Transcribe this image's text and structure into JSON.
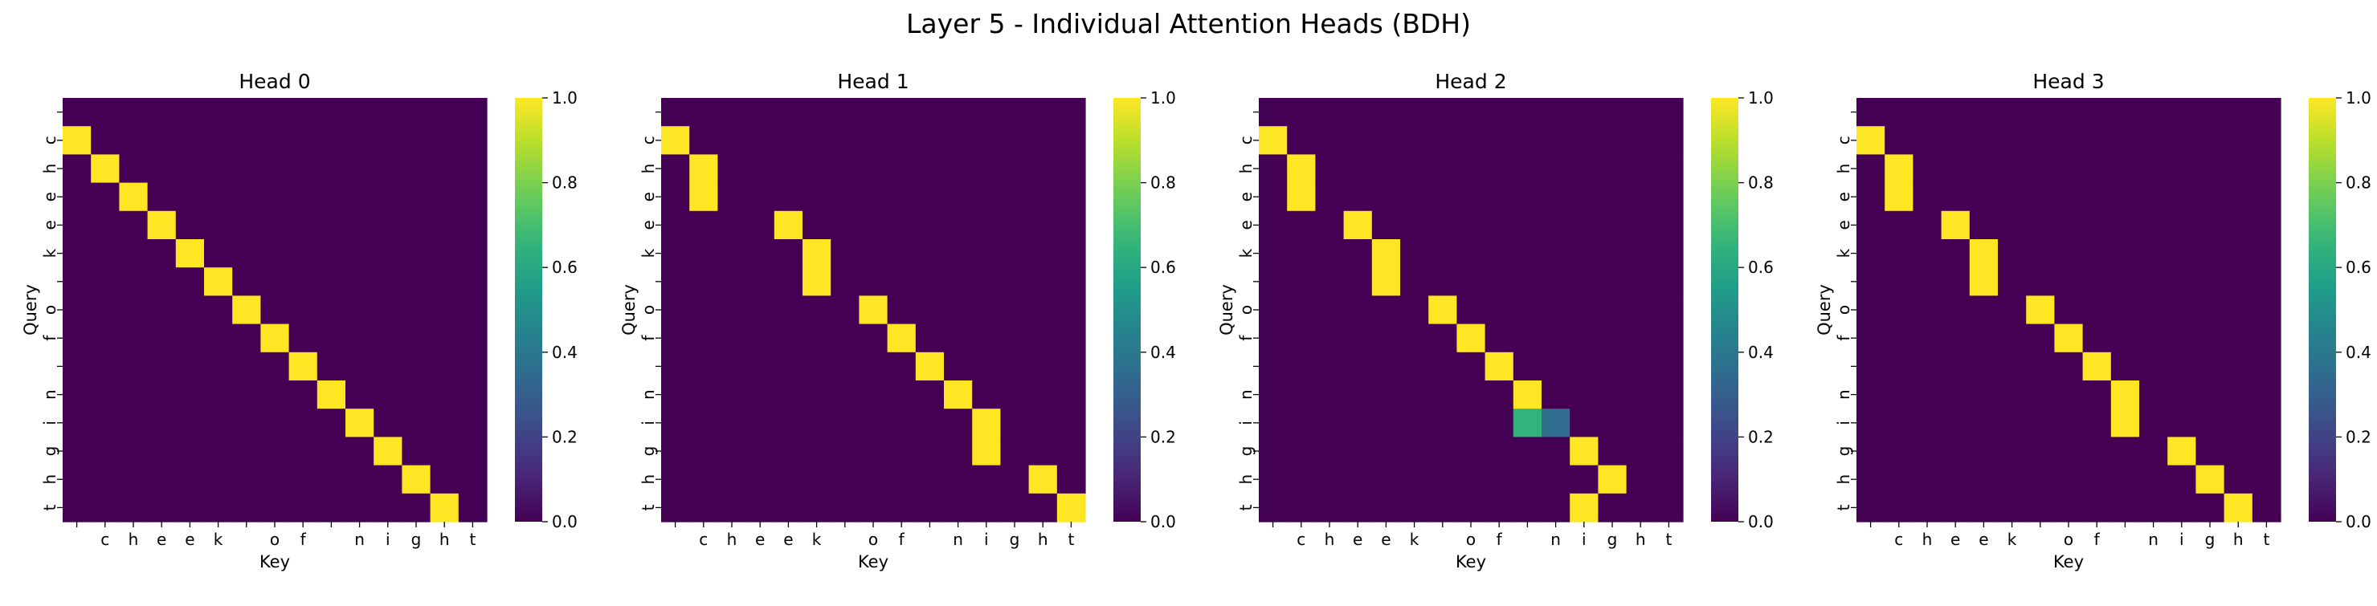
{
  "title": "Layer 5 - Individual Attention Heads (BDH)",
  "colors": {
    "colormap": "viridis",
    "low": "#440154",
    "high": "#fde725"
  },
  "chart_data": [
    {
      "type": "heatmap",
      "title": "Head 0",
      "xlabel": "Key",
      "ylabel": "Query",
      "x_tick_labels": [
        " ",
        "c",
        "h",
        "e",
        "e",
        "k",
        " ",
        "o",
        "f",
        " ",
        "n",
        "i",
        "g",
        "h",
        "t"
      ],
      "y_tick_labels": [
        " ",
        "c",
        "h",
        "e",
        "e",
        "k",
        " ",
        "o",
        "f",
        " ",
        "n",
        "i",
        "g",
        "h",
        "t"
      ],
      "colorbar": {
        "min": 0.0,
        "max": 1.0,
        "ticks": [
          "0.0",
          "0.2",
          "0.4",
          "0.6",
          "0.8",
          "1.0"
        ]
      },
      "values": [
        [
          0,
          0,
          0,
          0,
          0,
          0,
          0,
          0,
          0,
          0,
          0,
          0,
          0,
          0,
          0
        ],
        [
          1,
          0,
          0,
          0,
          0,
          0,
          0,
          0,
          0,
          0,
          0,
          0,
          0,
          0,
          0
        ],
        [
          0,
          1,
          0,
          0,
          0,
          0,
          0,
          0,
          0,
          0,
          0,
          0,
          0,
          0,
          0
        ],
        [
          0,
          0,
          1,
          0,
          0,
          0,
          0,
          0,
          0,
          0,
          0,
          0,
          0,
          0,
          0
        ],
        [
          0,
          0,
          0,
          1,
          0,
          0,
          0,
          0,
          0,
          0,
          0,
          0,
          0,
          0,
          0
        ],
        [
          0,
          0,
          0,
          0,
          1,
          0,
          0,
          0,
          0,
          0,
          0,
          0,
          0,
          0,
          0
        ],
        [
          0,
          0,
          0,
          0,
          0,
          1,
          0,
          0,
          0,
          0,
          0,
          0,
          0,
          0,
          0
        ],
        [
          0,
          0,
          0,
          0,
          0,
          0,
          1,
          0,
          0,
          0,
          0,
          0,
          0,
          0,
          0
        ],
        [
          0,
          0,
          0,
          0,
          0,
          0,
          0,
          1,
          0,
          0,
          0,
          0,
          0,
          0,
          0
        ],
        [
          0,
          0,
          0,
          0,
          0,
          0,
          0,
          0,
          1,
          0,
          0,
          0,
          0,
          0,
          0
        ],
        [
          0,
          0,
          0,
          0,
          0,
          0,
          0,
          0,
          0,
          1,
          0,
          0,
          0,
          0,
          0
        ],
        [
          0,
          0,
          0,
          0,
          0,
          0,
          0,
          0,
          0,
          0,
          1,
          0,
          0,
          0,
          0
        ],
        [
          0,
          0,
          0,
          0,
          0,
          0,
          0,
          0,
          0,
          0,
          0,
          1,
          0,
          0,
          0
        ],
        [
          0,
          0,
          0,
          0,
          0,
          0,
          0,
          0,
          0,
          0,
          0,
          0,
          1,
          0,
          0
        ],
        [
          0,
          0,
          0,
          0,
          0,
          0,
          0,
          0,
          0,
          0,
          0,
          0,
          0,
          1,
          0
        ]
      ]
    },
    {
      "type": "heatmap",
      "title": "Head 1",
      "xlabel": "Key",
      "ylabel": "Query",
      "x_tick_labels": [
        " ",
        "c",
        "h",
        "e",
        "e",
        "k",
        " ",
        "o",
        "f",
        " ",
        "n",
        "i",
        "g",
        "h",
        "t"
      ],
      "y_tick_labels": [
        " ",
        "c",
        "h",
        "e",
        "e",
        "k",
        " ",
        "o",
        "f",
        " ",
        "n",
        "i",
        "g",
        "h",
        "t"
      ],
      "colorbar": {
        "min": 0.0,
        "max": 1.0,
        "ticks": [
          "0.0",
          "0.2",
          "0.4",
          "0.6",
          "0.8",
          "1.0"
        ]
      },
      "values": [
        [
          0,
          0,
          0,
          0,
          0,
          0,
          0,
          0,
          0,
          0,
          0,
          0,
          0,
          0,
          0
        ],
        [
          1,
          0,
          0,
          0,
          0,
          0,
          0,
          0,
          0,
          0,
          0,
          0,
          0,
          0,
          0
        ],
        [
          0,
          1,
          0,
          0,
          0,
          0,
          0,
          0,
          0,
          0,
          0,
          0,
          0,
          0,
          0
        ],
        [
          0,
          1,
          0,
          0,
          0,
          0,
          0,
          0,
          0,
          0,
          0,
          0,
          0,
          0,
          0
        ],
        [
          0,
          0,
          0,
          0,
          1,
          0,
          0,
          0,
          0,
          0,
          0,
          0,
          0,
          0,
          0
        ],
        [
          0,
          0,
          0,
          0,
          0,
          1,
          0,
          0,
          0,
          0,
          0,
          0,
          0,
          0,
          0
        ],
        [
          0,
          0,
          0,
          0,
          0,
          1,
          0,
          0,
          0,
          0,
          0,
          0,
          0,
          0,
          0
        ],
        [
          0,
          0,
          0,
          0,
          0,
          0,
          0,
          1,
          0,
          0,
          0,
          0,
          0,
          0,
          0
        ],
        [
          0,
          0,
          0,
          0,
          0,
          0,
          0,
          0,
          1,
          0,
          0,
          0,
          0,
          0,
          0
        ],
        [
          0,
          0,
          0,
          0,
          0,
          0,
          0,
          0,
          0,
          1,
          0,
          0,
          0,
          0,
          0
        ],
        [
          0,
          0,
          0,
          0,
          0,
          0,
          0,
          0,
          0,
          0,
          1,
          0,
          0,
          0,
          0
        ],
        [
          0,
          0,
          0,
          0,
          0,
          0,
          0,
          0,
          0,
          0,
          0,
          1,
          0,
          0,
          0
        ],
        [
          0,
          0,
          0,
          0,
          0,
          0,
          0,
          0,
          0,
          0,
          0,
          1,
          0,
          0,
          0
        ],
        [
          0,
          0,
          0,
          0,
          0,
          0,
          0,
          0,
          0,
          0,
          0,
          0,
          0,
          1,
          0
        ],
        [
          0,
          0,
          0,
          0,
          0,
          0,
          0,
          0,
          0,
          0,
          0,
          0,
          0,
          0,
          1
        ]
      ]
    },
    {
      "type": "heatmap",
      "title": "Head 2",
      "xlabel": "Key",
      "ylabel": "Query",
      "x_tick_labels": [
        " ",
        "c",
        "h",
        "e",
        "e",
        "k",
        " ",
        "o",
        "f",
        " ",
        "n",
        "i",
        "g",
        "h",
        "t"
      ],
      "y_tick_labels": [
        " ",
        "c",
        "h",
        "e",
        "e",
        "k",
        " ",
        "o",
        "f",
        " ",
        "n",
        "i",
        "g",
        "h",
        "t"
      ],
      "colorbar": {
        "min": 0.0,
        "max": 1.0,
        "ticks": [
          "0.0",
          "0.2",
          "0.4",
          "0.6",
          "0.8",
          "1.0"
        ]
      },
      "values": [
        [
          0,
          0,
          0,
          0,
          0,
          0,
          0,
          0,
          0,
          0,
          0,
          0,
          0,
          0,
          0
        ],
        [
          1,
          0,
          0,
          0,
          0,
          0,
          0,
          0,
          0,
          0,
          0,
          0,
          0,
          0,
          0
        ],
        [
          0,
          1,
          0,
          0,
          0,
          0,
          0,
          0,
          0,
          0,
          0,
          0,
          0,
          0,
          0
        ],
        [
          0,
          1,
          0,
          0,
          0,
          0,
          0,
          0,
          0,
          0,
          0,
          0,
          0,
          0,
          0
        ],
        [
          0,
          0,
          0,
          1,
          0,
          0,
          0,
          0,
          0,
          0,
          0,
          0,
          0,
          0,
          0
        ],
        [
          0,
          0,
          0,
          0,
          1,
          0,
          0,
          0,
          0,
          0,
          0,
          0,
          0,
          0,
          0
        ],
        [
          0,
          0,
          0,
          0,
          1,
          0,
          0,
          0,
          0,
          0,
          0,
          0,
          0,
          0,
          0
        ],
        [
          0,
          0,
          0,
          0,
          0,
          0,
          1,
          0,
          0,
          0,
          0,
          0,
          0,
          0,
          0
        ],
        [
          0,
          0,
          0,
          0,
          0,
          0,
          0,
          1,
          0,
          0,
          0,
          0,
          0,
          0,
          0
        ],
        [
          0,
          0,
          0,
          0,
          0,
          0,
          0,
          0,
          1,
          0,
          0,
          0,
          0,
          0,
          0
        ],
        [
          0,
          0,
          0,
          0,
          0,
          0,
          0,
          0,
          0,
          1,
          0,
          0,
          0,
          0,
          0
        ],
        [
          0,
          0,
          0,
          0,
          0,
          0,
          0,
          0,
          0,
          0.65,
          0.35,
          0,
          0,
          0,
          0
        ],
        [
          0,
          0,
          0,
          0,
          0,
          0,
          0,
          0,
          0,
          0,
          0,
          1,
          0,
          0,
          0
        ],
        [
          0,
          0,
          0,
          0,
          0,
          0,
          0,
          0,
          0,
          0,
          0,
          0,
          1,
          0,
          0
        ],
        [
          0,
          0,
          0,
          0,
          0,
          0,
          0,
          0,
          0,
          0,
          0,
          1,
          0,
          0,
          0
        ]
      ]
    },
    {
      "type": "heatmap",
      "title": "Head 3",
      "xlabel": "Key",
      "ylabel": "Query",
      "x_tick_labels": [
        " ",
        "c",
        "h",
        "e",
        "e",
        "k",
        " ",
        "o",
        "f",
        " ",
        "n",
        "i",
        "g",
        "h",
        "t"
      ],
      "y_tick_labels": [
        " ",
        "c",
        "h",
        "e",
        "e",
        "k",
        " ",
        "o",
        "f",
        " ",
        "n",
        "i",
        "g",
        "h",
        "t"
      ],
      "colorbar": {
        "min": 0.0,
        "max": 1.0,
        "ticks": [
          "0.0",
          "0.2",
          "0.4",
          "0.6",
          "0.8",
          "1.0"
        ]
      },
      "values": [
        [
          0,
          0,
          0,
          0,
          0,
          0,
          0,
          0,
          0,
          0,
          0,
          0,
          0,
          0,
          0
        ],
        [
          1,
          0,
          0,
          0,
          0,
          0,
          0,
          0,
          0,
          0,
          0,
          0,
          0,
          0,
          0
        ],
        [
          0,
          1,
          0,
          0,
          0,
          0,
          0,
          0,
          0,
          0,
          0,
          0,
          0,
          0,
          0
        ],
        [
          0,
          1,
          0,
          0,
          0,
          0,
          0,
          0,
          0,
          0,
          0,
          0,
          0,
          0,
          0
        ],
        [
          0,
          0,
          0,
          1,
          0,
          0,
          0,
          0,
          0,
          0,
          0,
          0,
          0,
          0,
          0
        ],
        [
          0,
          0,
          0,
          0,
          1,
          0,
          0,
          0,
          0,
          0,
          0,
          0,
          0,
          0,
          0
        ],
        [
          0,
          0,
          0,
          0,
          1,
          0,
          0,
          0,
          0,
          0,
          0,
          0,
          0,
          0,
          0
        ],
        [
          0,
          0,
          0,
          0,
          0,
          0,
          1,
          0,
          0,
          0,
          0,
          0,
          0,
          0,
          0
        ],
        [
          0,
          0,
          0,
          0,
          0,
          0,
          0,
          1,
          0,
          0,
          0,
          0,
          0,
          0,
          0
        ],
        [
          0,
          0,
          0,
          0,
          0,
          0,
          0,
          0,
          1,
          0,
          0,
          0,
          0,
          0,
          0
        ],
        [
          0,
          0,
          0,
          0,
          0,
          0,
          0,
          0,
          0,
          1,
          0,
          0,
          0,
          0,
          0
        ],
        [
          0,
          0,
          0,
          0,
          0,
          0,
          0,
          0,
          0,
          1,
          0,
          0,
          0,
          0,
          0
        ],
        [
          0,
          0,
          0,
          0,
          0,
          0,
          0,
          0,
          0,
          0,
          0,
          1,
          0,
          0,
          0
        ],
        [
          0,
          0,
          0,
          0,
          0,
          0,
          0,
          0,
          0,
          0,
          0,
          0,
          1,
          0,
          0
        ],
        [
          0,
          0,
          0,
          0,
          0,
          0,
          0,
          0,
          0,
          0,
          0,
          0,
          0,
          1,
          0
        ]
      ]
    }
  ]
}
